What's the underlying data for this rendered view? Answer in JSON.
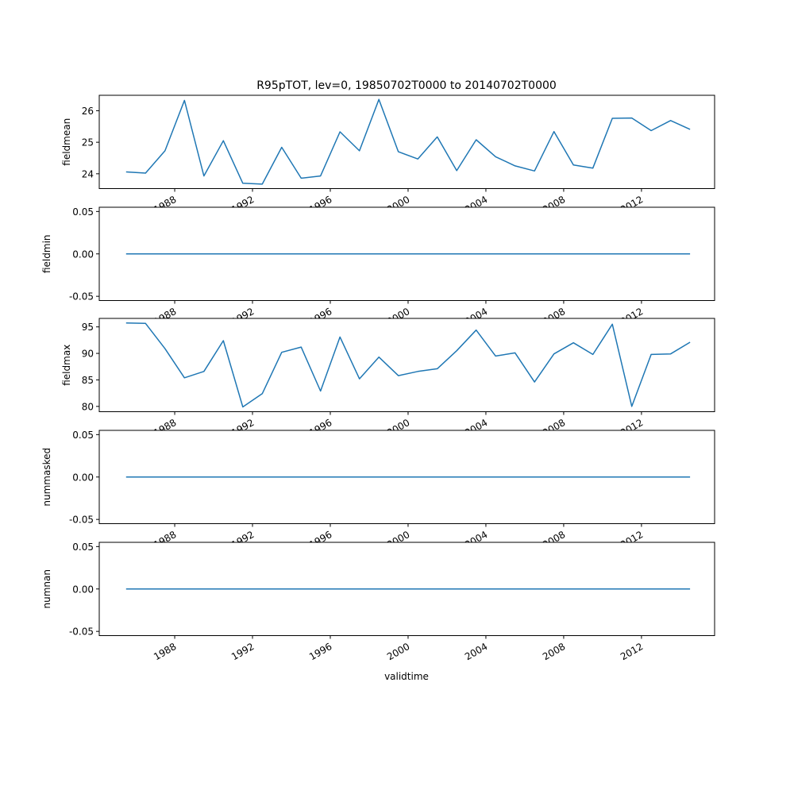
{
  "chart_data": [
    {
      "type": "line",
      "title": "R95pTOT, lev=0, 19850702T0000 to 20140702T0000",
      "ylabel": "fieldmean",
      "xlabel": "",
      "x": [
        1985,
        1986,
        1987,
        1988,
        1989,
        1990,
        1991,
        1992,
        1993,
        1994,
        1995,
        1996,
        1997,
        1998,
        1999,
        2000,
        2001,
        2002,
        2003,
        2004,
        2005,
        2006,
        2007,
        2008,
        2009,
        2010,
        2011,
        2012,
        2013,
        2014
      ],
      "values": [
        24.06,
        24.02,
        24.73,
        26.33,
        23.93,
        25.05,
        23.7,
        23.67,
        24.84,
        23.86,
        23.93,
        25.33,
        24.73,
        26.36,
        24.7,
        24.47,
        25.17,
        24.1,
        25.08,
        24.54,
        24.25,
        24.09,
        25.34,
        24.28,
        24.18,
        25.76,
        25.77,
        25.37,
        25.69,
        25.41
      ],
      "ylim": [
        23.53,
        26.49
      ],
      "yticks": [
        24,
        25,
        26
      ],
      "color": "#1f77b4"
    },
    {
      "type": "line",
      "ylabel": "fieldmin",
      "x": [
        1985,
        1986,
        1987,
        1988,
        1989,
        1990,
        1991,
        1992,
        1993,
        1994,
        1995,
        1996,
        1997,
        1998,
        1999,
        2000,
        2001,
        2002,
        2003,
        2004,
        2005,
        2006,
        2007,
        2008,
        2009,
        2010,
        2011,
        2012,
        2013,
        2014
      ],
      "values": [
        0,
        0,
        0,
        0,
        0,
        0,
        0,
        0,
        0,
        0,
        0,
        0,
        0,
        0,
        0,
        0,
        0,
        0,
        0,
        0,
        0,
        0,
        0,
        0,
        0,
        0,
        0,
        0,
        0,
        0
      ],
      "ylim": [
        -0.055,
        0.055
      ],
      "yticks": [
        -0.05,
        0.0,
        0.05
      ],
      "color": "#1f77b4"
    },
    {
      "type": "line",
      "ylabel": "fieldmax",
      "x": [
        1985,
        1986,
        1987,
        1988,
        1989,
        1990,
        1991,
        1992,
        1993,
        1994,
        1995,
        1996,
        1997,
        1998,
        1999,
        2000,
        2001,
        2002,
        2003,
        2004,
        2005,
        2006,
        2007,
        2008,
        2009,
        2010,
        2011,
        2012,
        2013,
        2014
      ],
      "values": [
        95.75,
        95.65,
        90.9,
        85.4,
        86.6,
        92.4,
        79.9,
        82.4,
        90.2,
        91.2,
        82.9,
        93.1,
        85.2,
        89.3,
        85.8,
        86.6,
        87.1,
        90.5,
        94.4,
        89.5,
        90.1,
        84.6,
        89.9,
        92.0,
        89.8,
        95.5,
        80.0,
        89.8,
        89.9,
        92.1
      ],
      "ylim": [
        79.0,
        96.6
      ],
      "yticks": [
        80,
        85,
        90,
        95
      ],
      "color": "#1f77b4"
    },
    {
      "type": "line",
      "ylabel": "nummasked",
      "x": [
        1985,
        1986,
        1987,
        1988,
        1989,
        1990,
        1991,
        1992,
        1993,
        1994,
        1995,
        1996,
        1997,
        1998,
        1999,
        2000,
        2001,
        2002,
        2003,
        2004,
        2005,
        2006,
        2007,
        2008,
        2009,
        2010,
        2011,
        2012,
        2013,
        2014
      ],
      "values": [
        0,
        0,
        0,
        0,
        0,
        0,
        0,
        0,
        0,
        0,
        0,
        0,
        0,
        0,
        0,
        0,
        0,
        0,
        0,
        0,
        0,
        0,
        0,
        0,
        0,
        0,
        0,
        0,
        0,
        0
      ],
      "ylim": [
        -0.055,
        0.055
      ],
      "yticks": [
        -0.05,
        0.0,
        0.05
      ],
      "color": "#1f77b4"
    },
    {
      "type": "line",
      "ylabel": "numnan",
      "xlabel": "validtime",
      "x": [
        1985,
        1986,
        1987,
        1988,
        1989,
        1990,
        1991,
        1992,
        1993,
        1994,
        1995,
        1996,
        1997,
        1998,
        1999,
        2000,
        2001,
        2002,
        2003,
        2004,
        2005,
        2006,
        2007,
        2008,
        2009,
        2010,
        2011,
        2012,
        2013,
        2014
      ],
      "values": [
        0,
        0,
        0,
        0,
        0,
        0,
        0,
        0,
        0,
        0,
        0,
        0,
        0,
        0,
        0,
        0,
        0,
        0,
        0,
        0,
        0,
        0,
        0,
        0,
        0,
        0,
        0,
        0,
        0,
        0
      ],
      "ylim": [
        -0.055,
        0.055
      ],
      "yticks": [
        -0.05,
        0.0,
        0.05
      ],
      "color": "#1f77b4"
    }
  ],
  "xaxis": {
    "ticks": [
      1988,
      1992,
      1996,
      2000,
      2004,
      2008,
      2012
    ],
    "tick_labels": [
      "1988",
      "1992",
      "1996",
      "2000",
      "2004",
      "2008",
      "2012"
    ],
    "xlim": [
      1984.12,
      2015.76
    ],
    "label": "validtime"
  }
}
